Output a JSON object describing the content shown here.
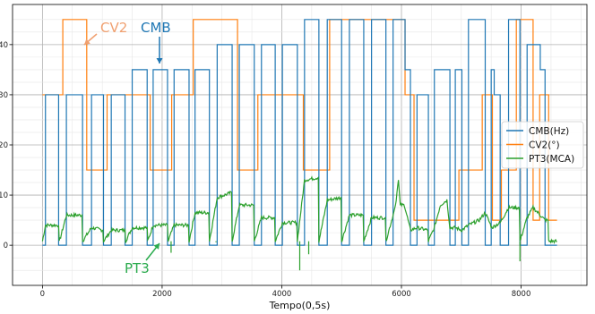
{
  "chart_data": {
    "type": "line",
    "title": "",
    "xlabel": "Tempo(0,5s)",
    "ylabel": "",
    "xlim": [
      -500,
      9100
    ],
    "ylim": [
      -8,
      48
    ],
    "xticks": [
      0,
      2000,
      4000,
      6000,
      8000
    ],
    "yticks": [
      0,
      10,
      20,
      30,
      40
    ],
    "grid": true,
    "legend_placement": "right",
    "series": [
      {
        "name": "CMB(Hz)",
        "color": "#1f77b4",
        "shape": "hv",
        "points": [
          [
            0,
            0
          ],
          [
            50,
            30
          ],
          [
            270,
            0
          ],
          [
            400,
            30
          ],
          [
            670,
            0
          ],
          [
            820,
            30
          ],
          [
            1020,
            0
          ],
          [
            1150,
            30
          ],
          [
            1380,
            0
          ],
          [
            1500,
            35
          ],
          [
            1750,
            0
          ],
          [
            1850,
            35
          ],
          [
            2090,
            0
          ],
          [
            2200,
            35
          ],
          [
            2450,
            0
          ],
          [
            2550,
            35
          ],
          [
            2790,
            0
          ],
          [
            2920,
            40
          ],
          [
            3170,
            0
          ],
          [
            3290,
            40
          ],
          [
            3540,
            0
          ],
          [
            3660,
            40
          ],
          [
            3890,
            0
          ],
          [
            4010,
            40
          ],
          [
            4260,
            0
          ],
          [
            4380,
            45
          ],
          [
            4620,
            0
          ],
          [
            4760,
            45
          ],
          [
            5000,
            0
          ],
          [
            5130,
            45
          ],
          [
            5370,
            0
          ],
          [
            5500,
            45
          ],
          [
            5740,
            0
          ],
          [
            5860,
            45
          ],
          [
            5950,
            45
          ],
          [
            6060,
            35
          ],
          [
            6150,
            0
          ],
          [
            6260,
            30
          ],
          [
            6450,
            0
          ],
          [
            6550,
            35
          ],
          [
            6750,
            35
          ],
          [
            6810,
            0
          ],
          [
            6900,
            35
          ],
          [
            7010,
            0
          ],
          [
            7120,
            45
          ],
          [
            7400,
            0
          ],
          [
            7500,
            35
          ],
          [
            7550,
            30
          ],
          [
            7650,
            0
          ],
          [
            7790,
            45
          ],
          [
            7980,
            0
          ],
          [
            8100,
            40
          ],
          [
            8320,
            35
          ],
          [
            8400,
            0
          ],
          [
            8600,
            0
          ]
        ]
      },
      {
        "name": "CV2(°)",
        "color": "#ff7f0e",
        "shape": "hv",
        "points": [
          [
            0,
            30
          ],
          [
            340,
            45
          ],
          [
            740,
            15
          ],
          [
            1080,
            30
          ],
          [
            1800,
            15
          ],
          [
            2160,
            30
          ],
          [
            2520,
            45
          ],
          [
            3260,
            15
          ],
          [
            3600,
            30
          ],
          [
            3980,
            30
          ],
          [
            4360,
            15
          ],
          [
            4800,
            45
          ],
          [
            6060,
            30
          ],
          [
            6210,
            5
          ],
          [
            6960,
            15
          ],
          [
            7350,
            30
          ],
          [
            7520,
            5
          ],
          [
            7670,
            15
          ],
          [
            7920,
            45
          ],
          [
            8200,
            5
          ],
          [
            8310,
            30
          ],
          [
            8460,
            5
          ],
          [
            8600,
            5
          ]
        ]
      },
      {
        "name": "PT3(MCA)",
        "color": "#2ca02c",
        "shape": "linear",
        "points": [
          [
            0,
            0.8
          ],
          [
            50,
            4
          ],
          [
            270,
            4
          ],
          [
            280,
            0.6
          ],
          [
            400,
            6
          ],
          [
            660,
            6
          ],
          [
            670,
            0.8
          ],
          [
            820,
            3.5
          ],
          [
            1010,
            3
          ],
          [
            1020,
            0.8
          ],
          [
            1150,
            3
          ],
          [
            1380,
            3
          ],
          [
            1390,
            0.8
          ],
          [
            1500,
            3.5
          ],
          [
            1750,
            3.5
          ],
          [
            1760,
            0.8
          ],
          [
            1850,
            4
          ],
          [
            2090,
            4
          ],
          [
            2100,
            0.8
          ],
          [
            2200,
            4
          ],
          [
            2440,
            4
          ],
          [
            2450,
            0.8
          ],
          [
            2550,
            6.5
          ],
          [
            2780,
            6.5
          ],
          [
            2790,
            0.8
          ],
          [
            2920,
            9.5
          ],
          [
            3160,
            10.5
          ],
          [
            3170,
            0.8
          ],
          [
            3290,
            8
          ],
          [
            3530,
            8
          ],
          [
            3540,
            0.8
          ],
          [
            3660,
            5.5
          ],
          [
            3880,
            5.5
          ],
          [
            3890,
            0.8
          ],
          [
            4010,
            4.5
          ],
          [
            4250,
            4.5
          ],
          [
            4260,
            0.8
          ],
          [
            4380,
            13
          ],
          [
            4610,
            13.5
          ],
          [
            4620,
            0.8
          ],
          [
            4760,
            9
          ],
          [
            4990,
            9.5
          ],
          [
            5000,
            0.8
          ],
          [
            5130,
            6
          ],
          [
            5360,
            6
          ],
          [
            5370,
            0.8
          ],
          [
            5500,
            5.5
          ],
          [
            5730,
            5.5
          ],
          [
            5740,
            0.8
          ],
          [
            5860,
            6
          ],
          [
            5900,
            8
          ],
          [
            5950,
            13
          ],
          [
            5980,
            8
          ],
          [
            6050,
            8
          ],
          [
            6150,
            3
          ],
          [
            6260,
            3.5
          ],
          [
            6440,
            3
          ],
          [
            6450,
            0.8
          ],
          [
            6550,
            3.5
          ],
          [
            6650,
            8
          ],
          [
            6760,
            9
          ],
          [
            6810,
            3.5
          ],
          [
            6900,
            3.5
          ],
          [
            7010,
            3
          ],
          [
            7120,
            4
          ],
          [
            7300,
            5
          ],
          [
            7400,
            6.5
          ],
          [
            7510,
            3.5
          ],
          [
            7650,
            4.5
          ],
          [
            7790,
            7.5
          ],
          [
            7970,
            7.5
          ],
          [
            7980,
            0.8
          ],
          [
            8100,
            5.5
          ],
          [
            8200,
            7.5
          ],
          [
            8320,
            6
          ],
          [
            8400,
            5
          ],
          [
            8450,
            5
          ],
          [
            8460,
            0.8
          ],
          [
            8600,
            0.8
          ]
        ]
      }
    ],
    "annotations": [
      {
        "text": "CV2",
        "color": "#f0a070"
      },
      {
        "text": "CMB",
        "color": "#1f77b4"
      },
      {
        "text": "PT3",
        "color": "#2bab4e"
      }
    ]
  }
}
